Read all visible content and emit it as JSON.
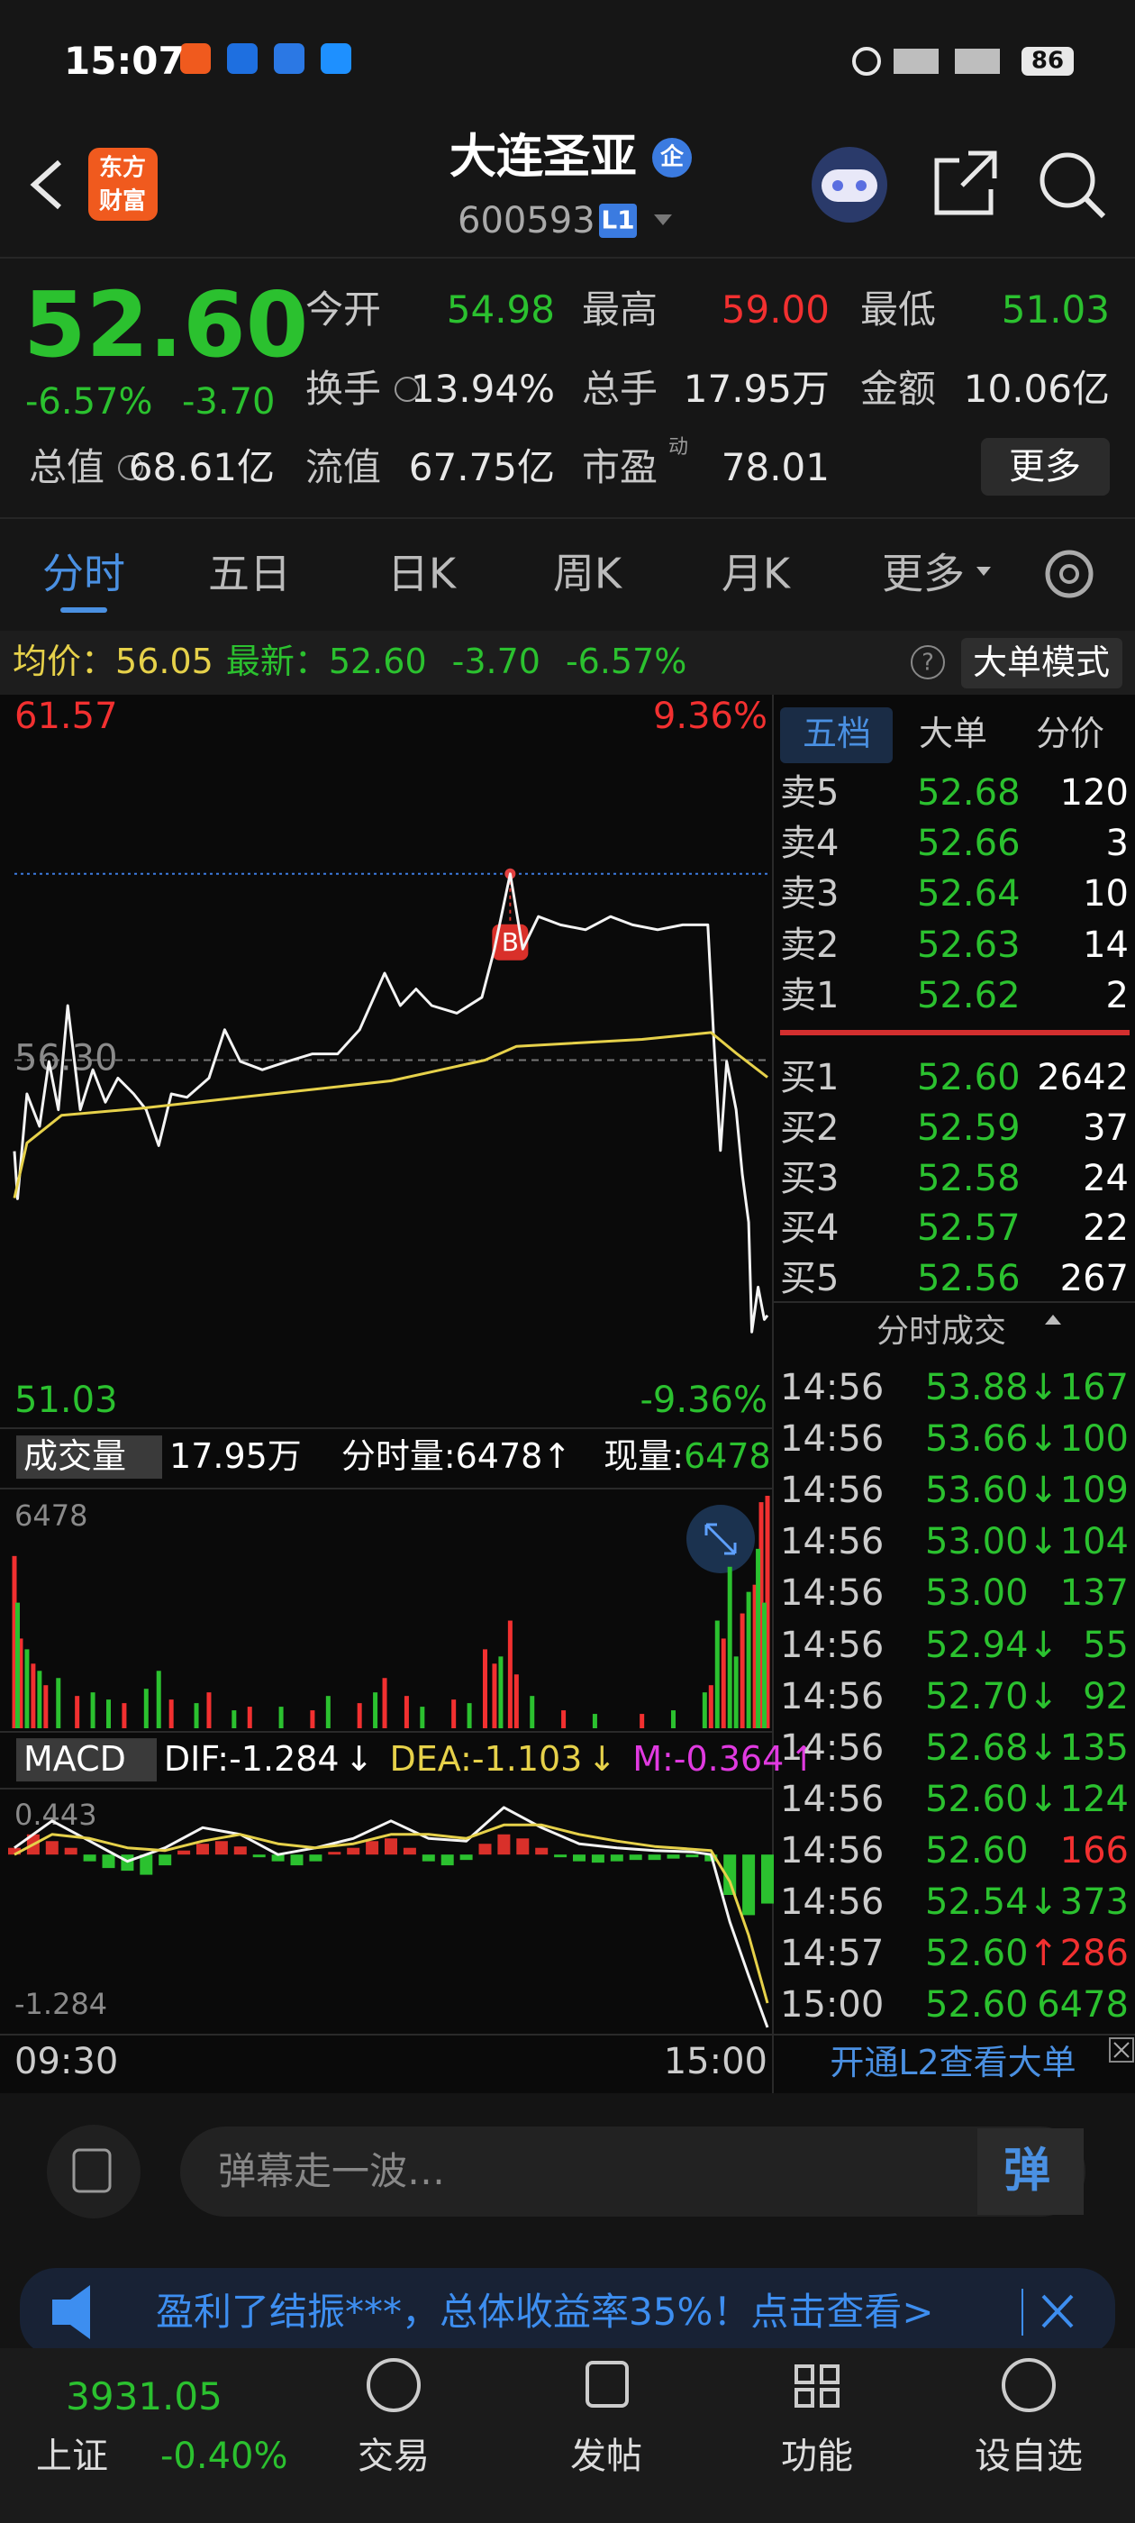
{
  "status_bar": {
    "time": "15:07",
    "battery": "86"
  },
  "header": {
    "logo": [
      "东方",
      "财富"
    ],
    "title": "大连圣亚",
    "badge": "企",
    "code": "600593",
    "level": "L1"
  },
  "quote": {
    "price": "52.60",
    "change_pct": "-6.57%",
    "change": "-3.70",
    "fields": [
      {
        "label": "今开",
        "value": "54.98",
        "color": "#2bc12f"
      },
      {
        "label": "最高",
        "value": "59.00",
        "color": "#f23030"
      },
      {
        "label": "最低",
        "value": "51.03",
        "color": "#2bc12f"
      },
      {
        "label": "换手",
        "value": "13.94%",
        "color": "#e8e8e8"
      },
      {
        "label": "总手",
        "value": "17.95万",
        "color": "#e8e8e8"
      },
      {
        "label": "金额",
        "value": "10.06亿",
        "color": "#e8e8e8"
      },
      {
        "label": "总值",
        "value": "68.61亿",
        "color": "#e8e8e8"
      },
      {
        "label": "流值",
        "value": "67.75亿",
        "color": "#e8e8e8"
      },
      {
        "label": "市盈",
        "value": "78.01",
        "color": "#e8e8e8",
        "sup": "动"
      }
    ],
    "more": "更多"
  },
  "tabs": {
    "items": [
      "分时",
      "五日",
      "日K",
      "周K",
      "月K",
      "更多"
    ],
    "active": 0
  },
  "info_bar": {
    "avg_label": "均价：",
    "avg": "56.05",
    "latest_label": "最新：",
    "latest": "52.60",
    "change": "-3.70",
    "change_pct": "-6.57%",
    "mode": "大单模式"
  },
  "chart_data": [
    {
      "type": "line",
      "ylim": [
        51.03,
        61.57
      ],
      "yticks": [
        61.57,
        {
          "value": 56.3,
          "label": "56.30"
        },
        51.03
      ],
      "y2lim": [
        -9.36,
        9.36
      ],
      "y2ticks": [
        {
          "value": 9.36,
          "label": "9.36%"
        },
        {
          "value": -9.36,
          "label": "-9.36%"
        }
      ],
      "xlim": [
        0,
        240
      ],
      "xticks": [
        {
          "value": 0,
          "label": "09:30"
        },
        {
          "value": 240,
          "label": "15:00"
        }
      ],
      "series": [
        {
          "color": "#f4f4f4",
          "x": [
            0,
            1,
            4,
            8,
            11,
            14,
            17,
            21,
            25,
            29,
            33,
            38,
            42,
            46,
            50,
            55,
            62,
            67,
            72,
            79,
            87,
            95,
            103,
            110,
            118,
            123,
            128,
            133,
            141,
            149,
            153,
            158,
            162,
            167,
            174,
            182,
            190,
            197,
            205,
            213,
            221,
            223,
            225,
            227,
            230,
            232,
            234,
            235,
            237,
            239,
            240
          ],
          "values": [
            54.98,
            54.29,
            55.81,
            55.34,
            56.28,
            55.58,
            57.09,
            55.58,
            56.16,
            55.69,
            56.04,
            55.81,
            55.58,
            55.06,
            55.81,
            55.76,
            56.04,
            56.74,
            56.28,
            56.16,
            56.28,
            56.39,
            56.39,
            56.74,
            57.56,
            57.09,
            57.33,
            57.09,
            56.98,
            57.21,
            57.91,
            59.0,
            57.91,
            58.38,
            58.26,
            58.19,
            58.38,
            58.26,
            58.19,
            58.26,
            58.26,
            56.51,
            54.99,
            56.28,
            55.58,
            54.64,
            53.95,
            52.36,
            53.01,
            52.54,
            52.6
          ]
        },
        {
          "color": "#e6d14a",
          "x": [
            0,
            4,
            15,
            40,
            80,
            120,
            150,
            160,
            200,
            222,
            230,
            240
          ],
          "values": [
            54.3,
            55.1,
            55.5,
            55.6,
            55.8,
            56.0,
            56.3,
            56.5,
            56.6,
            56.7,
            56.4,
            56.05
          ]
        }
      ],
      "annotations": [
        {
          "text": "B",
          "x": 158,
          "y": 59.0
        }
      ]
    },
    {
      "type": "bar",
      "ylim": [
        0,
        6478
      ],
      "yticks": [
        6478
      ],
      "xlim": [
        0,
        240
      ],
      "series": [
        {
          "color": "#f23030",
          "x": [
            0,
            2,
            6,
            10,
            20,
            35,
            50,
            62,
            75,
            95,
            110,
            118,
            125,
            140,
            150,
            153,
            158,
            160,
            175,
            200,
            222,
            226,
            232,
            236,
            238,
            240
          ],
          "values": [
            4800,
            2500,
            1800,
            1200,
            900,
            700,
            800,
            1000,
            600,
            500,
            700,
            1400,
            900,
            800,
            2200,
            1800,
            3000,
            1500,
            500,
            400,
            1200,
            2500,
            3200,
            4000,
            6300,
            6478
          ]
        },
        {
          "color": "#2bc12f",
          "x": [
            1,
            4,
            8,
            14,
            25,
            30,
            42,
            46,
            58,
            70,
            85,
            100,
            115,
            130,
            145,
            155,
            165,
            185,
            210,
            220,
            224,
            228,
            230,
            234,
            237,
            239
          ],
          "values": [
            3500,
            2200,
            1600,
            1400,
            1000,
            800,
            1100,
            1600,
            700,
            500,
            600,
            900,
            1000,
            600,
            700,
            2000,
            900,
            400,
            500,
            1000,
            3000,
            4500,
            2000,
            3800,
            5000,
            3500
          ]
        }
      ]
    },
    {
      "type": "combo",
      "ylim": [
        -1.284,
        0.443
      ],
      "yticks": [
        0.443,
        -1.284
      ],
      "xlim": [
        0,
        240
      ],
      "series": [
        {
          "kind": "bar",
          "color": "#d9302a",
          "neg_color": "#2bc12f",
          "x": [
            0,
            6,
            12,
            18,
            24,
            30,
            36,
            42,
            48,
            54,
            60,
            66,
            72,
            78,
            84,
            90,
            96,
            102,
            108,
            114,
            120,
            126,
            132,
            138,
            144,
            150,
            156,
            162,
            168,
            174,
            180,
            186,
            192,
            198,
            204,
            210,
            216,
            222,
            228,
            234,
            240
          ],
          "values": [
            0.05,
            0.15,
            0.1,
            0.05,
            -0.05,
            -0.1,
            -0.12,
            -0.15,
            -0.08,
            0.03,
            0.08,
            0.1,
            0.06,
            -0.02,
            -0.05,
            -0.08,
            -0.05,
            0.02,
            0.05,
            0.1,
            0.12,
            0.05,
            -0.05,
            -0.08,
            -0.04,
            0.08,
            0.15,
            0.12,
            0.05,
            -0.02,
            -0.05,
            -0.06,
            -0.05,
            -0.04,
            -0.04,
            -0.03,
            -0.02,
            -0.05,
            -0.3,
            -0.45,
            -0.364
          ]
        },
        {
          "kind": "line",
          "color": "#f4f4f4",
          "x": [
            0,
            12,
            24,
            36,
            48,
            60,
            72,
            84,
            96,
            108,
            120,
            132,
            144,
            156,
            168,
            180,
            192,
            204,
            216,
            222,
            228,
            234,
            240
          ],
          "values": [
            0.05,
            0.25,
            0.1,
            -0.05,
            0.05,
            0.2,
            0.15,
            0,
            0.05,
            0.12,
            0.25,
            0.12,
            0.1,
            0.35,
            0.2,
            0.08,
            0.05,
            0.03,
            0.02,
            0,
            -0.5,
            -0.9,
            -1.284
          ]
        },
        {
          "kind": "line",
          "color": "#e6d14a",
          "x": [
            0,
            12,
            24,
            36,
            48,
            60,
            72,
            84,
            96,
            108,
            120,
            132,
            144,
            156,
            168,
            180,
            192,
            204,
            216,
            222,
            228,
            234,
            240
          ],
          "values": [
            0,
            0.15,
            0.12,
            0.05,
            0.03,
            0.1,
            0.15,
            0.08,
            0.05,
            0.08,
            0.15,
            0.15,
            0.12,
            0.22,
            0.22,
            0.15,
            0.1,
            0.06,
            0.04,
            0.03,
            -0.2,
            -0.6,
            -1.103
          ]
        }
      ]
    }
  ],
  "volume_bar": {
    "label": "成交量",
    "total": "17.95万",
    "minute_label": "分时量:",
    "minute": "6478",
    "minute_arrow": "↑",
    "current_label": "现量:",
    "current": "6478"
  },
  "macd_bar": {
    "label": "MACD",
    "dif": "DIF:-1.284",
    "dif_arrow": "↓",
    "dea": "DEA:-1.103",
    "dea_arrow": "↓",
    "m": "M:-0.364",
    "m_arrow": "↑"
  },
  "side_panel": {
    "tabs": [
      "五档",
      "大单",
      "分价"
    ],
    "active": 0,
    "asks": [
      {
        "label": "卖5",
        "price": "52.68",
        "volume": "120"
      },
      {
        "label": "卖4",
        "price": "52.66",
        "volume": "3"
      },
      {
        "label": "卖3",
        "price": "52.64",
        "volume": "10"
      },
      {
        "label": "卖2",
        "price": "52.63",
        "volume": "14"
      },
      {
        "label": "卖1",
        "price": "52.62",
        "volume": "2"
      }
    ],
    "bids": [
      {
        "label": "买1",
        "price": "52.60",
        "volume": "2642"
      },
      {
        "label": "买2",
        "price": "52.59",
        "volume": "37"
      },
      {
        "label": "买3",
        "price": "52.58",
        "volume": "24"
      },
      {
        "label": "买4",
        "price": "52.57",
        "volume": "22"
      },
      {
        "label": "买5",
        "price": "52.56",
        "volume": "267"
      }
    ],
    "trades_title": "分时成交",
    "trades": [
      {
        "time": "14:56",
        "price": "53.88",
        "arrow": "↓",
        "volume": "167",
        "color": "#2bc12f"
      },
      {
        "time": "14:56",
        "price": "53.66",
        "arrow": "↓",
        "volume": "100",
        "color": "#2bc12f"
      },
      {
        "time": "14:56",
        "price": "53.60",
        "arrow": "↓",
        "volume": "109",
        "color": "#2bc12f"
      },
      {
        "time": "14:56",
        "price": "53.00",
        "arrow": "↓",
        "volume": "104",
        "color": "#2bc12f"
      },
      {
        "time": "14:56",
        "price": "53.00",
        "volume": "137",
        "color": "#2bc12f"
      },
      {
        "time": "14:56",
        "price": "52.94",
        "arrow": "↓",
        "volume": "55",
        "color": "#2bc12f"
      },
      {
        "time": "14:56",
        "price": "52.70",
        "arrow": "↓",
        "volume": "92",
        "color": "#2bc12f"
      },
      {
        "time": "14:56",
        "price": "52.68",
        "arrow": "↓",
        "volume": "135",
        "color": "#2bc12f"
      },
      {
        "time": "14:56",
        "price": "52.60",
        "arrow": "↓",
        "volume": "124",
        "color": "#2bc12f"
      },
      {
        "time": "14:56",
        "price": "52.60",
        "volume": "166",
        "color": "#f23030"
      },
      {
        "time": "14:56",
        "price": "52.54",
        "arrow": "↓",
        "volume": "373",
        "color": "#2bc12f"
      },
      {
        "time": "14:57",
        "price": "52.60",
        "arrow": "↑",
        "volume": "286",
        "color": "#f23030"
      },
      {
        "time": "15:00",
        "price": "52.60",
        "volume": "6478",
        "color": "#2bc12f"
      }
    ],
    "l2": "开通L2查看大单"
  },
  "comment": {
    "placeholder": "弹幕走一波…",
    "button": "弹"
  },
  "banner": {
    "text": "盈利了结振***，总体收益率35%！点击查看>"
  },
  "nav": {
    "index_value": "3931.05",
    "index_name": "上证",
    "index_change": "-0.40%",
    "items": [
      "交易",
      "发帖",
      "功能",
      "设自选"
    ]
  }
}
